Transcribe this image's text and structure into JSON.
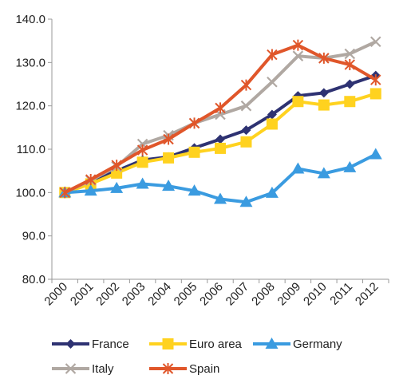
{
  "chart_data": {
    "type": "line",
    "title": "",
    "xlabel": "",
    "ylabel": "",
    "categories": [
      "2000",
      "2001",
      "2002",
      "2003",
      "2004",
      "2005",
      "2006",
      "2007",
      "2008",
      "2009",
      "2010",
      "2011",
      "2012"
    ],
    "y_ticks": [
      "80.0",
      "90.0",
      "100.0",
      "110.0",
      "120.0",
      "130.0",
      "140.0"
    ],
    "ylim": [
      80,
      140
    ],
    "grid": false,
    "legend_position": "bottom",
    "series": [
      {
        "name": "France",
        "color": "#2e3272",
        "marker": "diamond",
        "values": [
          100,
          102.5,
          105,
          107.5,
          108.2,
          110.3,
          112.3,
          114.4,
          118,
          122.3,
          123,
          125,
          127
        ]
      },
      {
        "name": "Euro area",
        "color": "#ffd21f",
        "marker": "square",
        "values": [
          100,
          102,
          104.5,
          107,
          108,
          109.3,
          110.2,
          111.7,
          115.8,
          121,
          120.2,
          121,
          122.8
        ]
      },
      {
        "name": "Germany",
        "color": "#3a9be0",
        "marker": "triangle",
        "values": [
          100,
          100.4,
          101,
          102,
          101.5,
          100.4,
          98.5,
          97.8,
          99.9,
          105.5,
          104.4,
          105.8,
          108.8
        ]
      },
      {
        "name": "Italy",
        "color": "#b0a8a2",
        "marker": "x",
        "values": [
          100,
          102.8,
          106,
          111.2,
          113.2,
          116,
          118,
          120,
          125.5,
          131.5,
          131,
          132,
          134.8
        ]
      },
      {
        "name": "Spain",
        "color": "#e0562a",
        "marker": "asterisk",
        "values": [
          100,
          103,
          106.3,
          109.8,
          112.3,
          116,
          119.5,
          124.8,
          131.8,
          134,
          131,
          129.5,
          126
        ]
      }
    ]
  }
}
